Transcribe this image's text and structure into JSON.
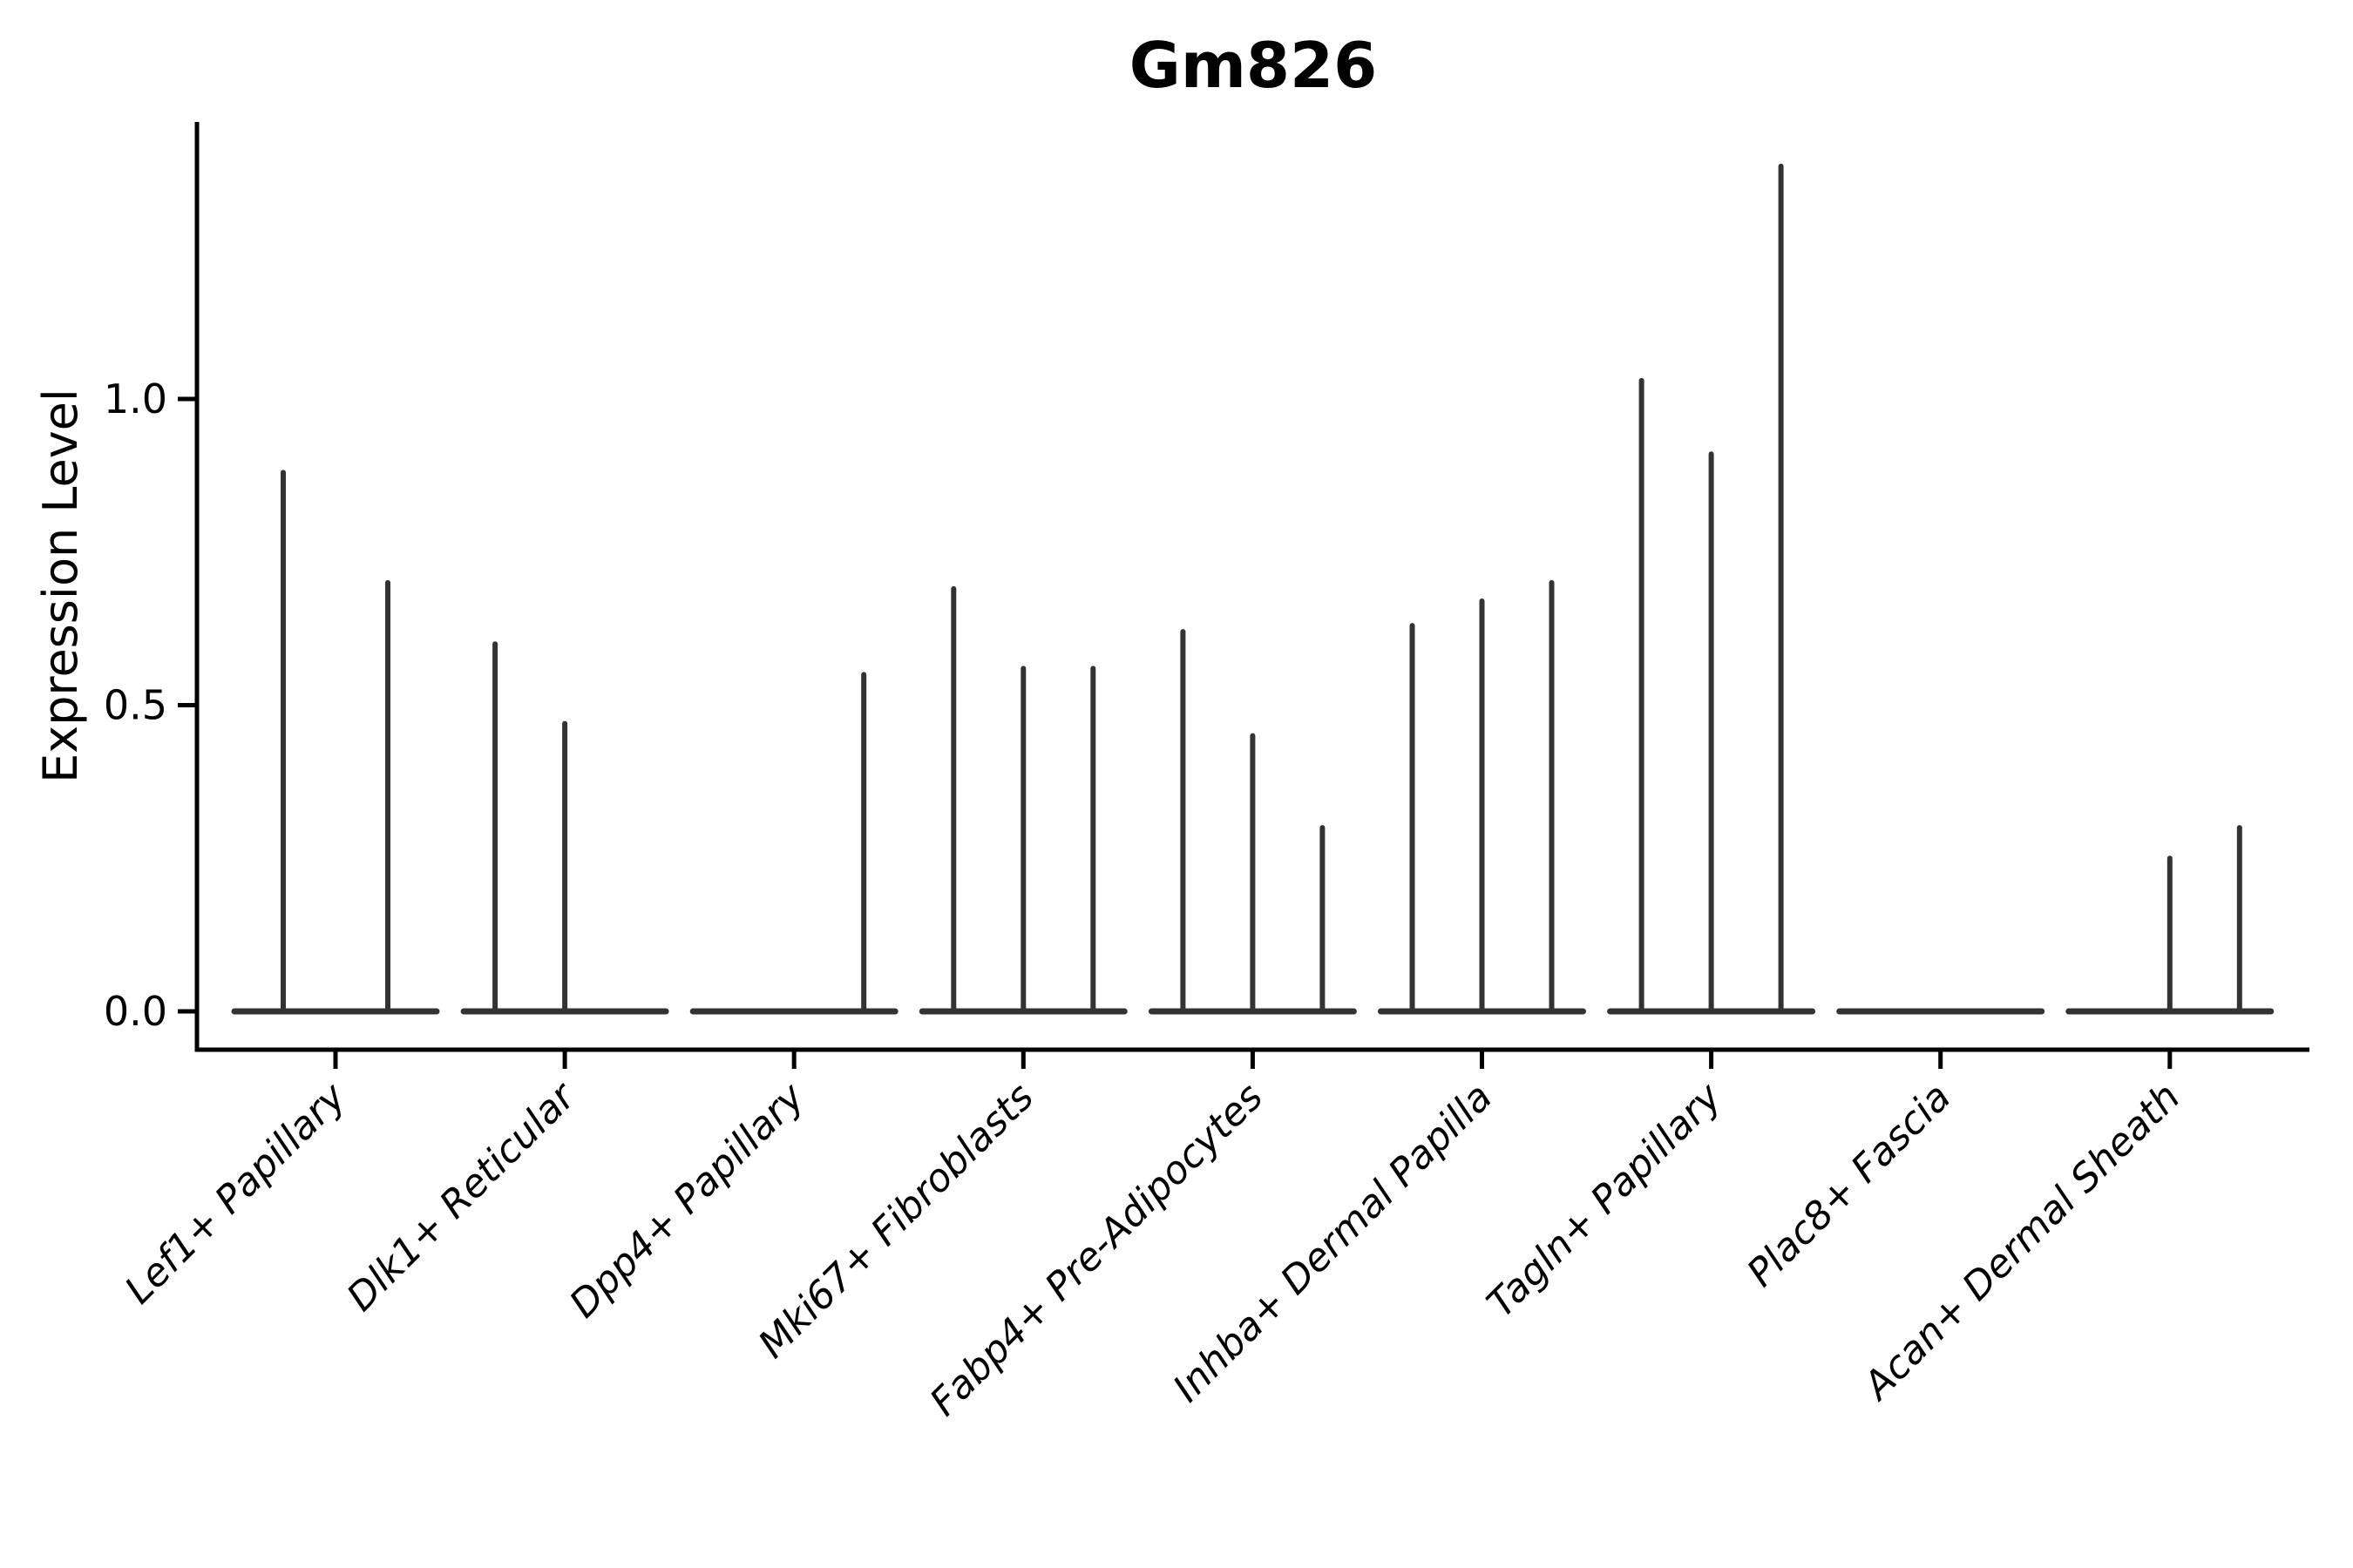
{
  "title": "Gm826",
  "y_axis": {
    "label": "Expression Level",
    "tick_labels": [
      "0.0",
      "0.5",
      "1.0"
    ],
    "tick_values": [
      0.0,
      0.5,
      1.0
    ]
  },
  "colors": {
    "axis": "#000000",
    "violin_stroke": "#333333",
    "background": "#ffffff",
    "text": "#000000"
  },
  "chart_data": {
    "type": "violin",
    "title": "Gm826",
    "xlabel": "",
    "ylabel": "Expression Level",
    "ylim": [
      -0.06,
      1.45
    ],
    "yticks": [
      0.0,
      0.5,
      1.0
    ],
    "grid": false,
    "legend": false,
    "categories": [
      "Lef1+ Papillary",
      "Dlk1+ Reticular",
      "Dpp4+ Papillary",
      "Mki67+ Fibroblasts",
      "Fabp4+ Pre-Adipocytes",
      "Inhba+ Dermal Papilla",
      "Tagln+ Papillary",
      "Plac8+ Fascia",
      "Acan+ Dermal Sheath"
    ],
    "note": "Each category shows collapsed violins (most cells at 0 expression, flat base line at y=0) with thin spikes rising to the max expression of each sub-violin; 0 = fully flat violin.",
    "groups": [
      {
        "category": "Lef1+ Papillary",
        "violin_max_values": [
          0.88,
          0.7
        ]
      },
      {
        "category": "Dlk1+ Reticular",
        "violin_max_values": [
          0.6,
          0.47,
          0
        ]
      },
      {
        "category": "Dpp4+ Papillary",
        "violin_max_values": [
          0,
          0,
          0.55
        ]
      },
      {
        "category": "Mki67+ Fibroblasts",
        "violin_max_values": [
          0.69,
          0.56,
          0.56
        ]
      },
      {
        "category": "Fabp4+ Pre-Adipocytes",
        "violin_max_values": [
          0.62,
          0.45,
          0.3
        ]
      },
      {
        "category": "Inhba+ Dermal Papilla",
        "violin_max_values": [
          0.63,
          0.67,
          0.7
        ]
      },
      {
        "category": "Tagln+ Papillary",
        "violin_max_values": [
          1.03,
          0.91,
          1.38
        ]
      },
      {
        "category": "Plac8+ Fascia",
        "violin_max_values": [
          0,
          0,
          0
        ]
      },
      {
        "category": "Acan+ Dermal Sheath",
        "violin_max_values": [
          0,
          0.25,
          0.3
        ]
      }
    ]
  }
}
